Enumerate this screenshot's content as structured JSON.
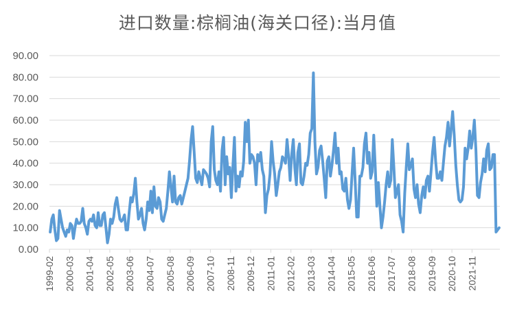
{
  "chart_data": {
    "type": "line",
    "title": "进口数量:棕榈油(海关口径):当月值",
    "xlabel": "",
    "ylabel": "",
    "ylim": [
      0,
      90
    ],
    "yticks": [
      "0.00",
      "10.00",
      "20.00",
      "30.00",
      "40.00",
      "50.00",
      "60.00",
      "70.00",
      "80.00",
      "90.00"
    ],
    "grid": true,
    "legend": "none",
    "line_color": "#5B9BD5",
    "x_tick_labels": [
      "1999-02",
      "2000-03",
      "2001-04",
      "2002-05",
      "2003-06",
      "2004-07",
      "2005-08",
      "2006-09",
      "2007-10",
      "2008-11",
      "2009-12",
      "2011-01",
      "2012-02",
      "2013-03",
      "2014-04",
      "2015-05",
      "2016-06",
      "2017-07",
      "2018-08",
      "2019-09",
      "2020-10",
      "2021-11"
    ],
    "x_start": "1999-02",
    "x_tick_interval_months": 13,
    "series": [
      {
        "name": "进口数量:棕榈油(海关口径):当月值",
        "values": [
          8,
          14,
          16,
          9,
          4,
          5,
          18,
          14,
          10,
          8,
          6,
          9,
          8,
          12,
          11,
          5,
          10,
          14,
          12,
          12,
          13,
          19,
          12,
          10,
          7,
          13,
          14,
          13,
          16,
          11,
          10,
          17,
          11,
          11,
          16,
          17,
          10,
          3,
          7,
          14,
          12,
          15,
          21,
          24,
          19,
          14,
          13,
          14,
          16,
          9,
          9,
          17,
          24,
          22,
          26,
          33,
          22,
          14,
          16,
          19,
          12,
          9,
          14,
          22,
          18,
          27,
          17,
          29,
          20,
          19,
          24,
          22,
          14,
          13,
          16,
          19,
          27,
          36,
          29,
          22,
          34,
          22,
          21,
          24,
          25,
          21,
          24,
          27,
          30,
          33,
          41,
          51,
          57,
          45,
          33,
          31,
          36,
          33,
          30,
          37,
          36,
          35,
          33,
          29,
          50,
          57,
          37,
          32,
          30,
          36,
          27,
          46,
          52,
          30,
          43,
          35,
          38,
          24,
          38,
          52,
          27,
          34,
          29,
          36,
          34,
          41,
          59,
          50,
          60,
          40,
          44,
          43,
          40,
          30,
          44,
          41,
          45,
          37,
          34,
          17,
          25,
          28,
          35,
          50,
          41,
          35,
          25,
          30,
          36,
          38,
          43,
          42,
          40,
          51,
          43,
          32,
          44,
          51,
          38,
          30,
          45,
          49,
          31,
          30,
          34,
          40,
          39,
          44,
          54,
          56,
          82,
          50,
          35,
          38,
          46,
          48,
          41,
          33,
          24,
          41,
          43,
          34,
          39,
          46,
          54,
          40,
          47,
          35,
          36,
          28,
          27,
          33,
          23,
          19,
          23,
          35,
          47,
          32,
          15,
          15,
          34,
          34,
          38,
          49,
          54,
          40,
          45,
          33,
          36,
          53,
          38,
          20,
          31,
          20,
          10,
          15,
          22,
          30,
          36,
          29,
          32,
          51,
          38,
          24,
          27,
          30,
          16,
          13,
          8,
          26,
          38,
          49,
          37,
          39,
          42,
          28,
          24,
          30,
          21,
          17,
          25,
          29,
          24,
          32,
          34,
          27,
          36,
          45,
          52,
          41,
          33,
          33,
          36,
          32,
          40,
          48,
          52,
          59,
          48,
          56,
          64,
          53,
          39,
          30,
          23,
          22,
          23,
          29,
          47,
          42,
          47,
          55,
          47,
          52,
          60,
          46,
          25,
          24,
          31,
          35,
          42,
          36,
          46,
          49,
          37,
          38,
          44,
          44,
          8,
          9,
          10
        ]
      }
    ]
  }
}
